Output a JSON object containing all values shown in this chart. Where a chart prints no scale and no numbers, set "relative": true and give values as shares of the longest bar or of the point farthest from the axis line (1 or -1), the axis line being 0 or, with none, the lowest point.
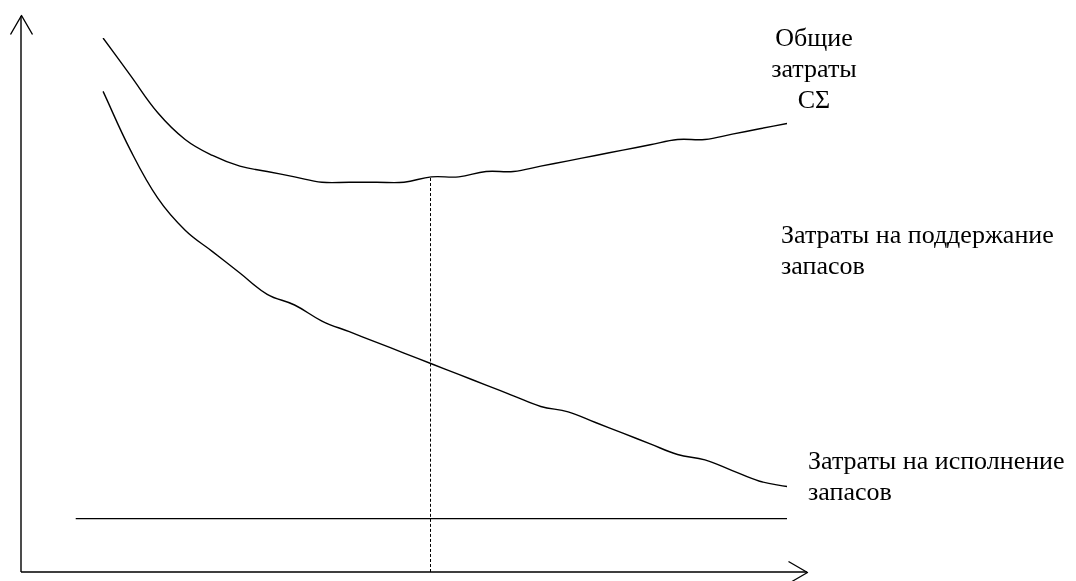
{
  "chart_data": {
    "type": "line",
    "relative": true,
    "marker": "none",
    "legend": false,
    "categories": [
      null,
      null,
      null,
      null,
      null,
      null,
      null,
      null,
      null,
      null,
      null,
      null,
      null,
      null,
      null,
      null,
      null,
      null,
      null,
      null,
      null,
      null,
      null,
      null,
      null,
      null,
      null,
      null,
      null
    ],
    "series": [
      {
        "color": "#000000",
        "values": [
          null,
          null,
          null,
          1.0,
          0.93,
          0.86,
          0.81,
          0.78,
          0.76,
          0.75,
          0.74,
          0.73,
          0.73,
          0.73,
          0.73,
          0.74,
          0.74,
          0.75,
          0.75,
          0.76,
          0.77,
          0.78,
          0.79,
          0.8,
          0.81,
          0.81,
          0.82,
          0.83,
          0.84
        ]
      },
      {
        "color": "#000000",
        "values": [
          null,
          null,
          null,
          0.9,
          0.79,
          0.7,
          0.64,
          0.6,
          0.56,
          0.52,
          0.5,
          0.47,
          0.45,
          0.43,
          0.41,
          0.39,
          0.37,
          0.35,
          0.33,
          0.31,
          0.3,
          0.28,
          0.26,
          0.24,
          0.22,
          0.21,
          0.19,
          0.17,
          0.16
        ]
      },
      {
        "color": "#000000",
        "values": [
          null,
          null,
          0.1,
          0.1,
          0.1,
          0.1,
          0.1,
          0.1,
          0.1,
          0.1,
          0.1,
          0.1,
          0.1,
          0.1,
          0.1,
          0.1,
          0.1,
          0.1,
          0.1,
          0.1,
          0.1,
          0.1,
          0.1,
          0.1,
          0.1,
          0.1,
          0.1,
          0.1,
          0.1
        ]
      }
    ],
    "annotations": [
      "Общие затраты CΣ",
      "Затраты на поддержание запасов",
      "Затраты на исполнение запасов"
    ]
  }
}
